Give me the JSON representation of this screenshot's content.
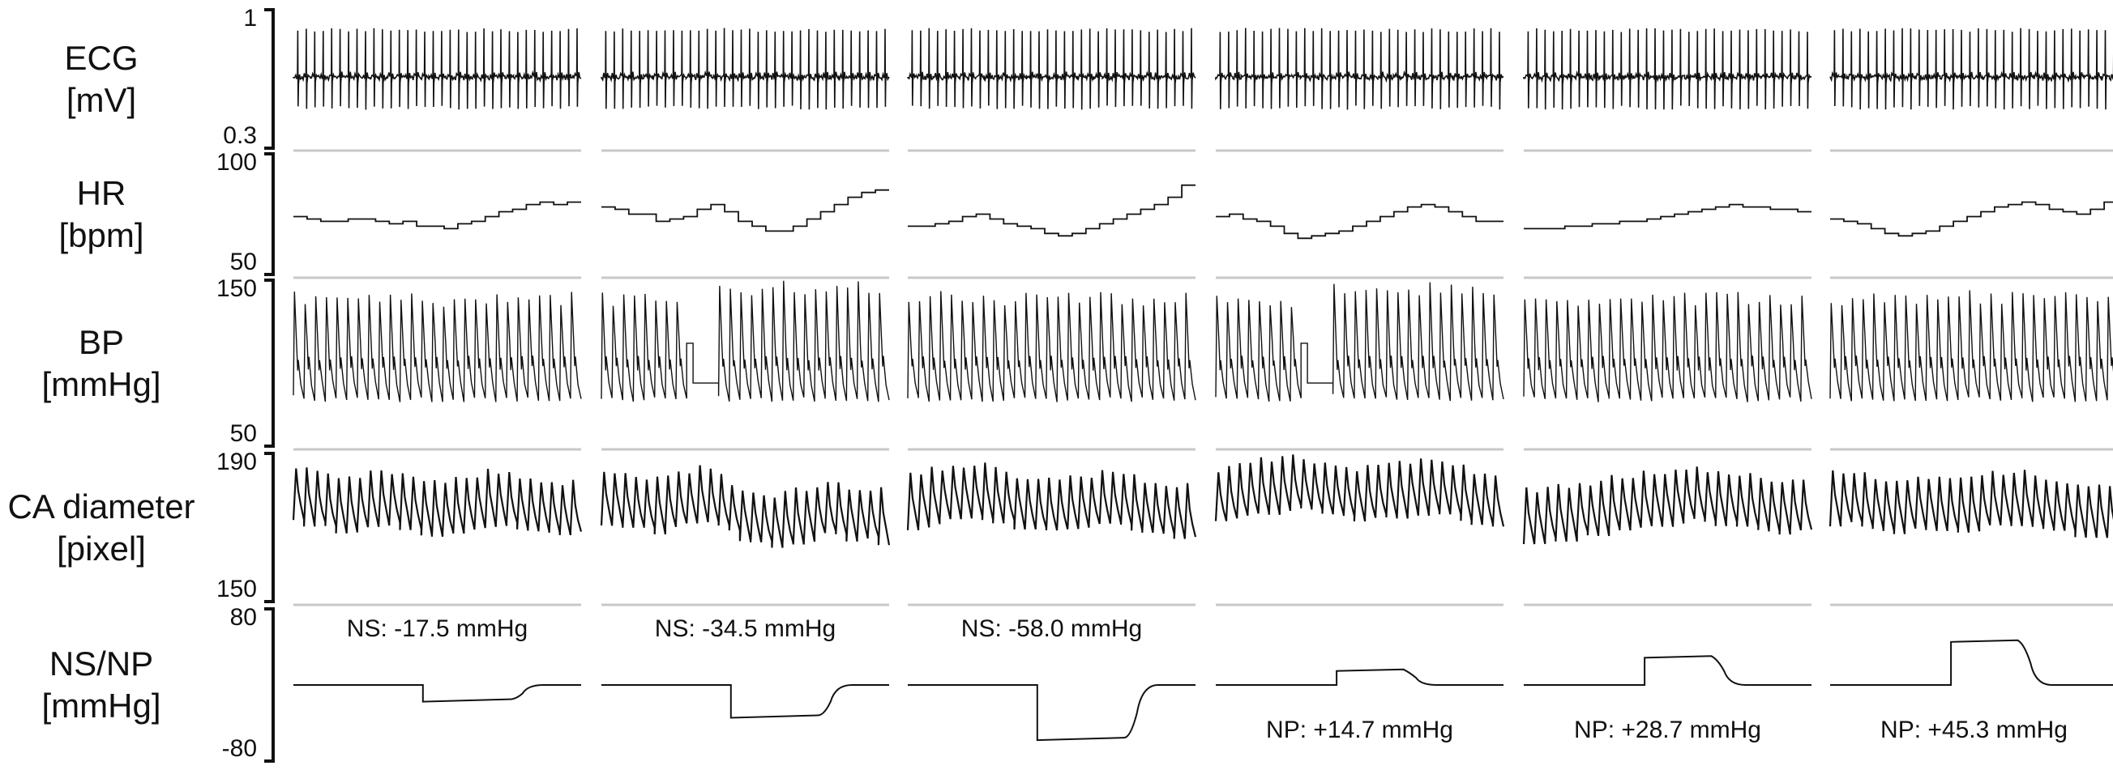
{
  "chart_data": {
    "type": "line",
    "rows": [
      {
        "key": "ecg",
        "label": "ECG",
        "unit": "[mV]",
        "ymax": "1",
        "ymin": "0.3",
        "ylim": [
          0.3,
          1.0
        ]
      },
      {
        "key": "hr",
        "label": "HR",
        "unit": "[bpm]",
        "ymax": "100",
        "ymin": "50",
        "ylim": [
          50,
          100
        ]
      },
      {
        "key": "bp",
        "label": "BP",
        "unit": "[mmHg]",
        "ymax": "150",
        "ymin": "50",
        "ylim": [
          50,
          150
        ]
      },
      {
        "key": "ca",
        "label": "CA diameter",
        "unit": "[pixel]",
        "ymax": "190",
        "ymin": "150",
        "ylim": [
          150,
          190
        ]
      },
      {
        "key": "ns",
        "label": "NS/NP",
        "unit": "[mmHg]",
        "ymax": "80",
        "ymin": "-80",
        "ylim": [
          -80,
          80
        ]
      }
    ],
    "conditions": [
      {
        "label": "NS: -17.5 mmHg",
        "pressure": -17.5,
        "hr": [
          74,
          73,
          72,
          72,
          73,
          73,
          72,
          71,
          72,
          70,
          70,
          69,
          71,
          72,
          74,
          76,
          77,
          79,
          80,
          79,
          80
        ],
        "bp_artifact": false,
        "ca": [
          179,
          178,
          177,
          176,
          176,
          177,
          178,
          178,
          177,
          176,
          175,
          175,
          176,
          177,
          178,
          178,
          177,
          176,
          176,
          175,
          175,
          175
        ]
      },
      {
        "label": "NS: -34.5 mmHg",
        "pressure": -34.5,
        "hr": [
          78,
          77,
          75,
          75,
          72,
          73,
          74,
          77,
          79,
          76,
          72,
          70,
          68,
          68,
          70,
          73,
          76,
          79,
          82,
          84,
          85
        ],
        "bp_artifact": true,
        "ca": [
          178,
          178,
          177,
          176,
          176,
          177,
          178,
          179,
          178,
          176,
          174,
          173,
          172,
          172,
          173,
          174,
          175,
          175,
          174,
          174,
          173,
          173
        ]
      },
      {
        "label": "NS: -58.0 mmHg",
        "pressure": -58.0,
        "hr": [
          70,
          70,
          71,
          72,
          74,
          75,
          73,
          71,
          70,
          69,
          67,
          66,
          67,
          69,
          71,
          73,
          75,
          77,
          79,
          82,
          87
        ],
        "bp_artifact": false,
        "ca": [
          177,
          178,
          179,
          180,
          180,
          180,
          179,
          178,
          177,
          176,
          176,
          176,
          177,
          177,
          178,
          178,
          177,
          176,
          175,
          175,
          174,
          174
        ]
      },
      {
        "label": "NP: +14.7 mmHg",
        "pressure": 14.7,
        "hr": [
          74,
          75,
          73,
          72,
          70,
          67,
          65,
          66,
          67,
          68,
          70,
          72,
          74,
          76,
          78,
          79,
          78,
          76,
          74,
          72,
          72
        ],
        "bp_artifact": true,
        "ca": [
          178,
          179,
          180,
          181,
          181,
          182,
          182,
          181,
          180,
          180,
          179,
          179,
          180,
          180,
          181,
          181,
          181,
          180,
          179,
          178,
          177,
          177
        ]
      },
      {
        "label": "NP: +28.7 mmHg",
        "pressure": 28.7,
        "hr": [
          69,
          69,
          69,
          70,
          70,
          71,
          71,
          72,
          72,
          73,
          74,
          75,
          76,
          77,
          78,
          79,
          78,
          78,
          77,
          77,
          76
        ],
        "bp_artifact": false,
        "ca": [
          173,
          173,
          174,
          174,
          175,
          175,
          176,
          177,
          177,
          178,
          178,
          179,
          179,
          179,
          178,
          178,
          177,
          177,
          176,
          176,
          176,
          175
        ]
      },
      {
        "label": "NP: +45.3 mmHg",
        "pressure": 45.3,
        "hr": [
          73,
          72,
          71,
          69,
          67,
          66,
          67,
          68,
          70,
          72,
          74,
          76,
          78,
          79,
          80,
          79,
          77,
          76,
          75,
          77,
          80
        ],
        "bp_artifact": false,
        "ca": [
          178,
          178,
          177,
          177,
          176,
          176,
          177,
          177,
          176,
          176,
          176,
          177,
          178,
          178,
          178,
          177,
          176,
          176,
          175,
          175,
          174,
          173
        ]
      }
    ]
  }
}
